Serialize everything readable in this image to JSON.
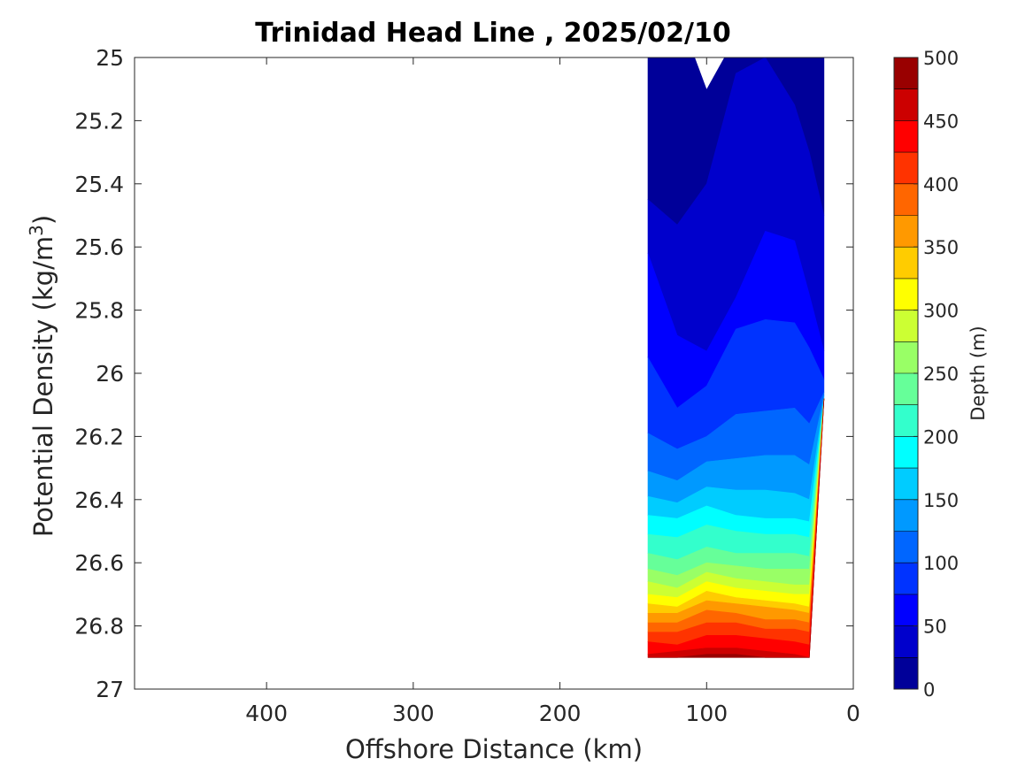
{
  "chart_data": {
    "type": "heatmap",
    "title": "Trinidad Head Line , 2025/02/10",
    "xlabel": "Offshore Distance (km)",
    "ylabel": "Potential Density (kg/m",
    "ylabel_sup": "3",
    "ylabel_close": ")",
    "xlim": [
      490,
      0
    ],
    "ylim": [
      27,
      25
    ],
    "xticks": [
      400,
      300,
      200,
      100,
      0
    ],
    "yticks": [
      25,
      25.2,
      25.4,
      25.6,
      25.8,
      26,
      26.2,
      26.4,
      26.6,
      26.8,
      27
    ],
    "ytick_labels": [
      "25",
      "25.2",
      "25.4",
      "25.6",
      "25.8",
      "26",
      "26.2",
      "26.4",
      "26.6",
      "26.8",
      "27"
    ],
    "xtick_labels": [
      "400",
      "300",
      "200",
      "100",
      "0"
    ],
    "colorbar": {
      "label": "Depth (m)",
      "range": [
        0,
        500
      ],
      "step": 25,
      "ticks": [
        0,
        50,
        100,
        150,
        200,
        250,
        300,
        350,
        400,
        450,
        500
      ],
      "tick_labels": [
        "0",
        "50",
        "100",
        "150",
        "200",
        "250",
        "300",
        "350",
        "400",
        "450",
        "500"
      ],
      "colormap": "jet"
    },
    "stations_x": [
      140,
      120,
      100,
      80,
      60,
      40,
      30,
      20
    ],
    "bottom_density": [
      26.9,
      26.9,
      26.9,
      26.9,
      26.9,
      26.9,
      26.9,
      26.08
    ],
    "contours": {
      "levels": [
        25,
        50,
        75,
        100,
        125,
        150,
        175,
        200,
        225,
        250,
        275,
        300,
        325,
        350,
        375,
        400,
        425,
        450,
        475
      ],
      "density": [
        [
          25.45,
          25.53,
          25.4,
          25.05,
          25.0,
          25.15,
          25.3,
          25.5
        ],
        [
          25.62,
          25.88,
          25.93,
          25.76,
          25.55,
          25.58,
          25.75,
          25.93
        ],
        [
          25.95,
          26.11,
          26.04,
          25.86,
          25.83,
          25.84,
          25.92,
          26.02
        ],
        [
          26.19,
          26.24,
          26.2,
          26.13,
          26.12,
          26.11,
          26.16,
          26.06
        ],
        [
          26.31,
          26.34,
          26.28,
          26.27,
          26.26,
          26.26,
          26.29,
          26.07
        ],
        [
          26.39,
          26.41,
          26.36,
          26.37,
          26.37,
          26.38,
          26.4,
          26.08
        ],
        [
          26.45,
          26.46,
          26.42,
          26.45,
          26.46,
          26.46,
          26.47,
          26.08
        ],
        [
          26.51,
          26.52,
          26.48,
          26.5,
          26.51,
          26.51,
          26.52,
          26.08
        ],
        [
          26.57,
          26.59,
          26.55,
          26.57,
          26.57,
          26.57,
          26.58,
          26.08
        ],
        [
          26.62,
          26.64,
          26.6,
          26.61,
          26.62,
          26.62,
          26.62,
          26.08
        ],
        [
          26.66,
          26.68,
          26.63,
          26.65,
          26.66,
          26.67,
          26.67,
          26.08
        ],
        [
          26.7,
          26.71,
          26.66,
          26.68,
          26.69,
          26.7,
          26.7,
          26.08
        ],
        [
          26.73,
          26.74,
          26.69,
          26.71,
          26.72,
          26.73,
          26.74,
          26.08
        ],
        [
          26.76,
          26.76,
          26.72,
          26.73,
          26.74,
          26.75,
          26.76,
          26.08
        ],
        [
          26.79,
          26.79,
          26.75,
          26.76,
          26.78,
          26.78,
          26.79,
          26.08
        ],
        [
          26.82,
          26.82,
          26.79,
          26.79,
          26.81,
          26.81,
          26.82,
          26.08
        ],
        [
          26.85,
          26.86,
          26.83,
          26.83,
          26.84,
          26.85,
          26.86,
          26.08
        ],
        [
          26.89,
          26.88,
          26.87,
          26.87,
          26.88,
          26.89,
          26.9,
          26.08
        ],
        [
          26.9,
          26.9,
          26.89,
          26.89,
          26.9,
          26.9,
          26.9,
          26.08
        ]
      ]
    },
    "top_gap": {
      "x": [
        108,
        100,
        88
      ],
      "density": [
        25.0,
        25.1,
        25.0
      ]
    },
    "grid": false
  }
}
